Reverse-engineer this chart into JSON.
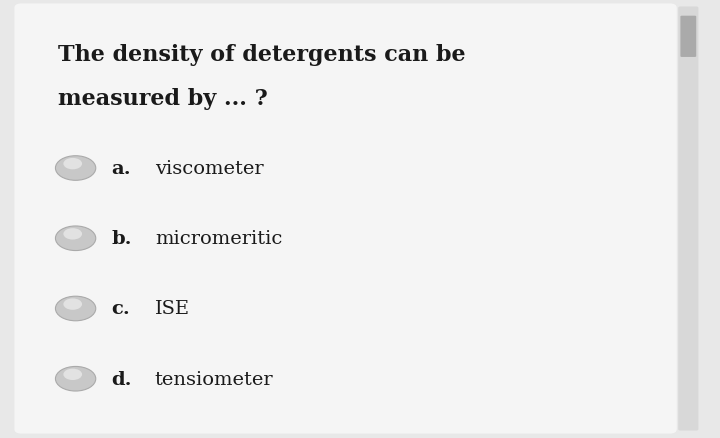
{
  "title_line1": "The density of detergents can be",
  "title_line2": "measured by ... ?",
  "options": [
    {
      "label": "a.",
      "text": "viscometer"
    },
    {
      "label": "b.",
      "text": "micromeritic"
    },
    {
      "label": "c.",
      "text": "ISE"
    },
    {
      "label": "d.",
      "text": "tensiometer"
    }
  ],
  "background_color": "#e8e8e8",
  "card_color": "#f5f5f5",
  "text_color": "#1a1a1a",
  "radio_outer_color": "#c8c8c8",
  "radio_inner_color": "#e2e2e2",
  "title_fontsize": 16,
  "option_fontsize": 14,
  "fig_width": 7.2,
  "fig_height": 4.39
}
